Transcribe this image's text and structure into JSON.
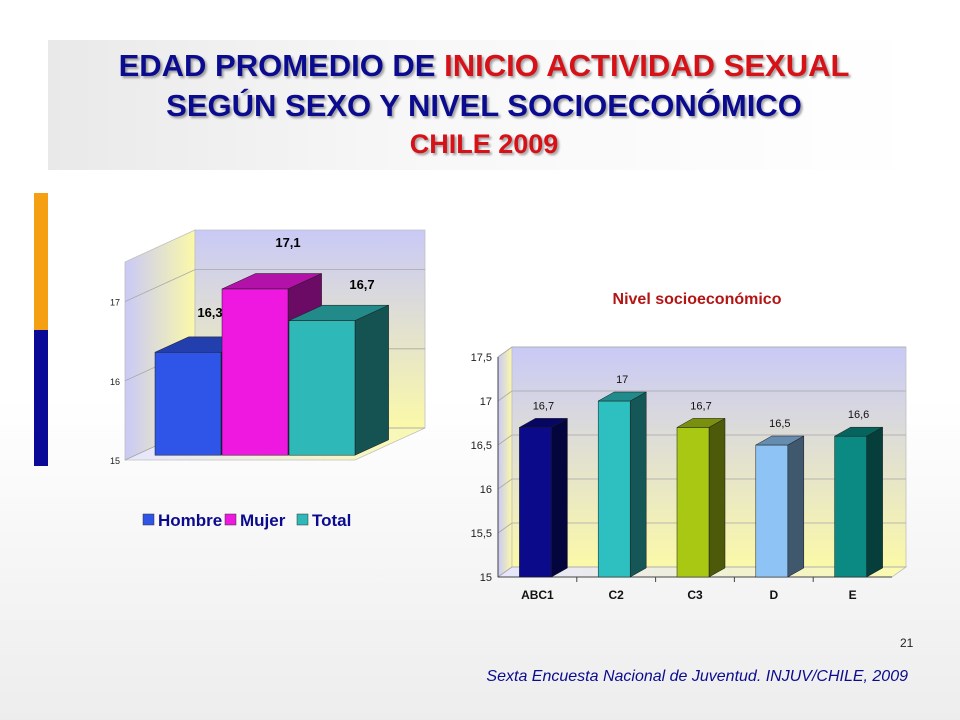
{
  "slide": {
    "title_part1": "EDAD PROMEDIO DE ",
    "title_part2": "INICIO ACTIVIDAD SEXUAL",
    "title_line2": "SEGÚN SEXO Y NIVEL SOCIOECONÓMICO",
    "title_line3": "CHILE 2009",
    "page_number": "21",
    "source": "Sexta Encuesta Nacional de Juventud. INJUV/CHILE, 2009",
    "colors": {
      "title_blue": "#0b0b8f",
      "title_red": "#d61218",
      "accent_orange": "#f5a012",
      "accent_navy": "#0a0a96"
    }
  },
  "chart_data": [
    {
      "type": "bar",
      "style": "3d",
      "categories": [
        "Hombre",
        "Mujer",
        "Total"
      ],
      "values": [
        16.3,
        17.1,
        16.7
      ],
      "value_labels": [
        "16,3",
        "17,1",
        "16,7"
      ],
      "yticks": [
        "15",
        "16",
        "17"
      ],
      "ylim": [
        15,
        17.5
      ],
      "legend": [
        "Hombre",
        "Mujer",
        "Total"
      ],
      "legend_position": "bottom",
      "colors": [
        "#2f54e8",
        "#ee18e0",
        "#2eb8b8"
      ],
      "grid": true
    },
    {
      "type": "bar",
      "style": "3d",
      "title": "Nivel socioeconómico",
      "categories": [
        "ABC1",
        "C2",
        "C3",
        "D",
        "E"
      ],
      "values": [
        16.7,
        17.0,
        16.7,
        16.5,
        16.6
      ],
      "value_labels": [
        "16,7",
        "17",
        "16,7",
        "16,5",
        "16,6"
      ],
      "yticks": [
        "15",
        "15,5",
        "16",
        "16,5",
        "17",
        "17,5"
      ],
      "ylim": [
        15,
        17.5
      ],
      "colors": [
        "#0a0a8a",
        "#2ec0c0",
        "#a8c814",
        "#8ec4f5",
        "#0a8a82"
      ],
      "grid": true
    }
  ]
}
